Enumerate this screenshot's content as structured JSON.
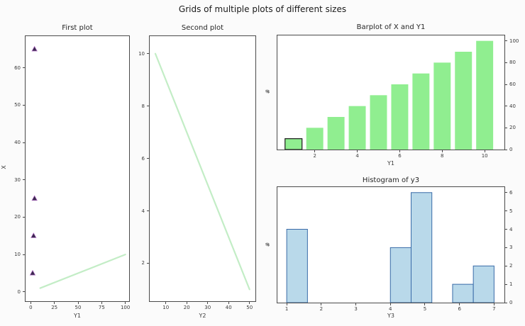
{
  "figure": {
    "suptitle": "Grids of multiple plots of different sizes"
  },
  "chart_data": [
    {
      "id": "first-plot",
      "type": "scatter",
      "title": "First plot",
      "xlabel": "Y1",
      "ylabel": "X",
      "xlim": [
        -5.5,
        104
      ],
      "ylim": [
        -2.5,
        68.5
      ],
      "xticks": [
        0,
        25,
        50,
        75,
        100
      ],
      "yticks": [
        0,
        10,
        20,
        30,
        40,
        50,
        60
      ],
      "yticks_side": "left",
      "grid": false,
      "scatter": {
        "marker": "triangle-up",
        "color": "#3a2a4e",
        "edge_color": "#b06bc4",
        "points": [
          [
            2,
            5
          ],
          [
            3,
            15
          ],
          [
            4,
            25
          ],
          [
            4,
            65
          ]
        ]
      },
      "line": {
        "color": "#c3edc6",
        "points": [
          [
            10,
            1
          ],
          [
            100,
            10
          ]
        ]
      }
    },
    {
      "id": "second-plot",
      "type": "line",
      "title": "Second plot",
      "xlabel": "Y2",
      "ylabel": "",
      "xlim": [
        2.3,
        52.8
      ],
      "ylim": [
        0.55,
        10.67
      ],
      "xticks": [
        10,
        20,
        30,
        40,
        50
      ],
      "yticks": [
        2,
        4,
        6,
        8,
        10
      ],
      "yticks_side": "left",
      "grid": false,
      "line": {
        "color": "#c3edc6",
        "points": [
          [
            5,
            10
          ],
          [
            50,
            1
          ]
        ]
      }
    },
    {
      "id": "barplot",
      "type": "bar",
      "title": "Barplot of X and Y1",
      "xlabel": "Y1",
      "ylabel": "#",
      "xlim": [
        0.24,
        10.93
      ],
      "ylim": [
        0,
        105
      ],
      "xticks": [
        2,
        4,
        6,
        8,
        10
      ],
      "yticks": [
        0,
        20,
        40,
        60,
        80,
        100
      ],
      "yticks_side": "right",
      "grid": false,
      "bars": {
        "x": [
          1,
          2,
          3,
          4,
          5,
          6,
          7,
          8,
          9,
          10
        ],
        "heights": [
          10,
          20,
          30,
          40,
          50,
          60,
          70,
          80,
          90,
          100
        ],
        "bar_width": 0.8,
        "fill": "#90ee90",
        "first_bar_edge": "#1a1a1a"
      }
    },
    {
      "id": "histogram",
      "type": "hist",
      "title": "Histogram of y3",
      "xlabel": "Y3",
      "ylabel": "#",
      "xlim": [
        0.73,
        7.3
      ],
      "ylim": [
        0,
        6.3
      ],
      "xticks": [
        1,
        2,
        3,
        4,
        5,
        6,
        7
      ],
      "yticks": [
        0,
        1,
        2,
        3,
        4,
        5,
        6
      ],
      "yticks_side": "right",
      "grid": false,
      "hist": {
        "bin_start": 1.0,
        "bin_width": 0.6,
        "counts": [
          4,
          0,
          0,
          0,
          0,
          3,
          6,
          0,
          1,
          2
        ],
        "fill": "#b9d9ea",
        "edge": "#3a6ca8"
      }
    }
  ]
}
